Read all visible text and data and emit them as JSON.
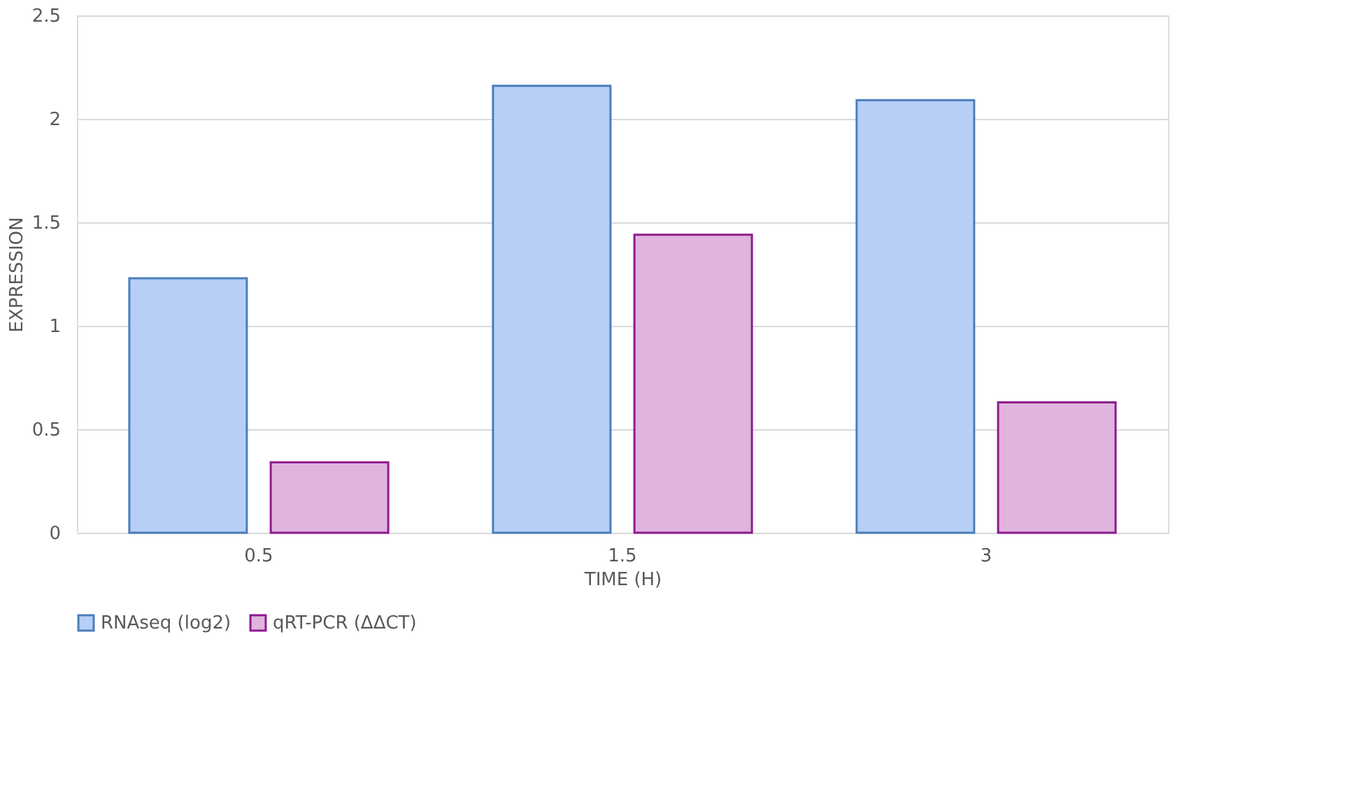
{
  "chart_data": {
    "type": "bar",
    "xlabel": "TIME (H)",
    "ylabel": "EXPRESSION",
    "categories": [
      "0.5",
      "1.5",
      "3"
    ],
    "series": [
      {
        "name": "RNAseq (log2)",
        "color": "#b7cff7",
        "values": [
          1.23,
          2.16,
          2.09
        ]
      },
      {
        "name": "qRT-PCR (ΔΔCT)",
        "color": "#e0b4dc",
        "values": [
          0.34,
          1.44,
          0.63
        ]
      }
    ],
    "ylim": [
      0,
      2.5
    ],
    "yticks": [
      0,
      0.5,
      1,
      1.5,
      2,
      2.5
    ],
    "grid": "y",
    "legend": "bottom"
  }
}
